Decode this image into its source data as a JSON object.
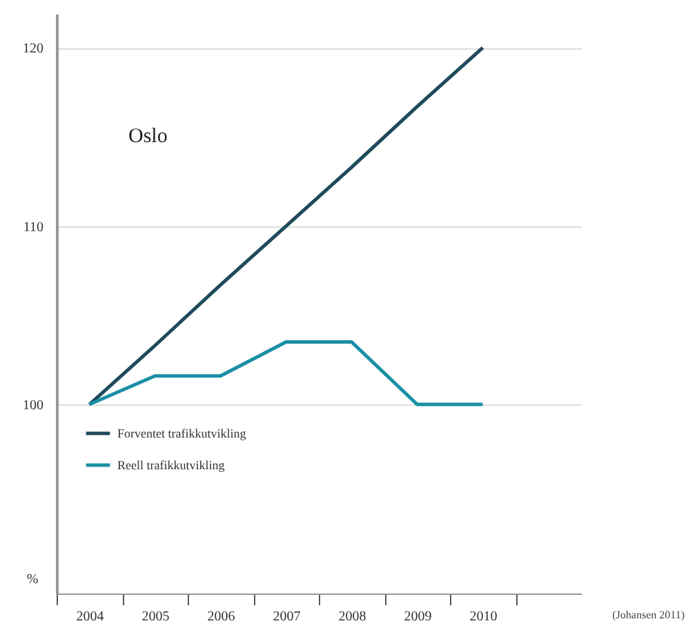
{
  "chart_data": {
    "type": "line",
    "categories": [
      "2004",
      "2005",
      "2006",
      "2007",
      "2008",
      "2009",
      "2010"
    ],
    "series": [
      {
        "name": "Forventet trafikkutvikling",
        "color": "#1f4a5c",
        "values": [
          100,
          103.3,
          106.7,
          110,
          113.3,
          116.7,
          120
        ]
      },
      {
        "name": "Reell trafikkutvikling",
        "color": "#1a8fa6",
        "values": [
          100,
          101.6,
          101.6,
          103.5,
          103.5,
          100,
          100
        ]
      }
    ],
    "ylabel": "%",
    "ylim": [
      89.4,
      121.9
    ],
    "yticks": [
      100,
      110,
      120
    ],
    "grid": "y",
    "legend": "bottom left",
    "marker": "none",
    "line_style": "solid",
    "annotations": [
      "Oslo",
      "(Johansen 2011)"
    ]
  }
}
